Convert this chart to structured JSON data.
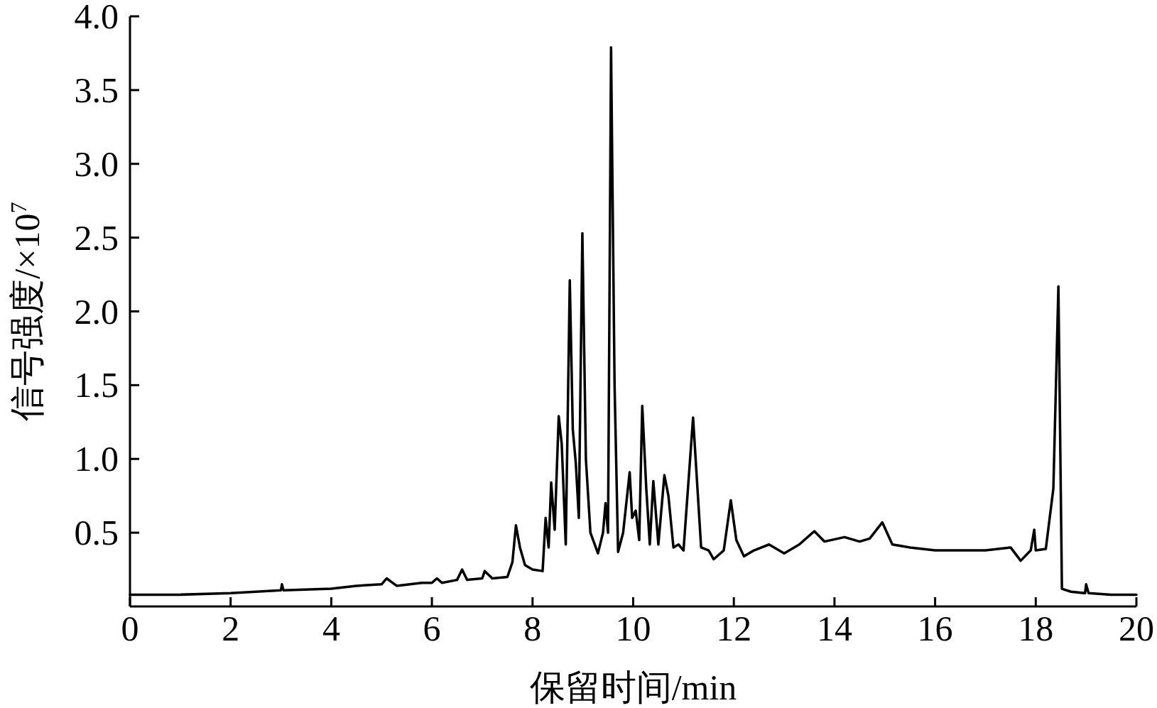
{
  "chart_data": {
    "type": "line",
    "xlabel": "保留时间/min",
    "ylabel": "信号强度/×10$^{7}$",
    "xlim": [
      0,
      20
    ],
    "ylim": [
      0,
      4
    ],
    "xticks": [
      0,
      2,
      4,
      6,
      8,
      10,
      12,
      14,
      16,
      18,
      20
    ],
    "yticks": [
      0.5,
      {
        "value": 1,
        "label": "1.0"
      },
      1.5,
      {
        "value": 2,
        "label": "2.0"
      },
      2.5,
      {
        "value": 3,
        "label": "3.0"
      },
      3.5,
      {
        "value": 4,
        "label": "4.0"
      }
    ],
    "grid": false,
    "marker": "none",
    "line_style": "solid",
    "series": [
      {
        "color": "#000000",
        "x": [
          0,
          1,
          2,
          3,
          3.02,
          3.05,
          4,
          4.5,
          5,
          5.1,
          5.3,
          5.8,
          6,
          6.1,
          6.2,
          6.5,
          6.6,
          6.7,
          7,
          7.05,
          7.2,
          7.5,
          7.6,
          7.67,
          7.75,
          7.85,
          8.0,
          8.2,
          8.26,
          8.32,
          8.37,
          8.44,
          8.52,
          8.58,
          8.66,
          8.74,
          8.8,
          8.86,
          8.92,
          8.99,
          9.06,
          9.15,
          9.3,
          9.4,
          9.45,
          9.5,
          9.56,
          9.63,
          9.7,
          9.8,
          9.93,
          9.98,
          10.05,
          10.12,
          10.18,
          10.26,
          10.33,
          10.4,
          10.5,
          10.62,
          10.7,
          10.8,
          10.9,
          11.0,
          11.19,
          11.35,
          11.5,
          11.6,
          11.8,
          11.94,
          12.05,
          12.2,
          12.4,
          12.7,
          13.0,
          13.3,
          13.6,
          13.8,
          14.2,
          14.5,
          14.7,
          14.95,
          15.15,
          15.5,
          16,
          17,
          17.5,
          17.7,
          17.9,
          17.97,
          18.0,
          18.2,
          18.35,
          18.45,
          18.52,
          18.7,
          18.98,
          19.0,
          19.05,
          19.5,
          20
        ],
        "values": [
          0.08,
          0.08,
          0.09,
          0.11,
          0.15,
          0.11,
          0.12,
          0.14,
          0.15,
          0.19,
          0.14,
          0.16,
          0.16,
          0.19,
          0.16,
          0.18,
          0.25,
          0.18,
          0.19,
          0.24,
          0.19,
          0.2,
          0.3,
          0.55,
          0.4,
          0.28,
          0.25,
          0.24,
          0.6,
          0.4,
          0.84,
          0.52,
          1.29,
          1.1,
          0.42,
          2.21,
          1.2,
          0.97,
          0.6,
          2.53,
          1.0,
          0.5,
          0.36,
          0.5,
          0.7,
          0.5,
          3.79,
          1.5,
          0.37,
          0.5,
          0.91,
          0.6,
          0.65,
          0.45,
          1.36,
          0.8,
          0.42,
          0.85,
          0.42,
          0.89,
          0.75,
          0.4,
          0.42,
          0.38,
          1.28,
          0.4,
          0.38,
          0.32,
          0.38,
          0.72,
          0.45,
          0.34,
          0.38,
          0.42,
          0.36,
          0.42,
          0.51,
          0.44,
          0.47,
          0.44,
          0.46,
          0.57,
          0.42,
          0.4,
          0.38,
          0.38,
          0.4,
          0.31,
          0.38,
          0.52,
          0.38,
          0.39,
          0.8,
          2.17,
          0.12,
          0.1,
          0.09,
          0.15,
          0.09,
          0.08,
          0.08
        ]
      }
    ]
  }
}
